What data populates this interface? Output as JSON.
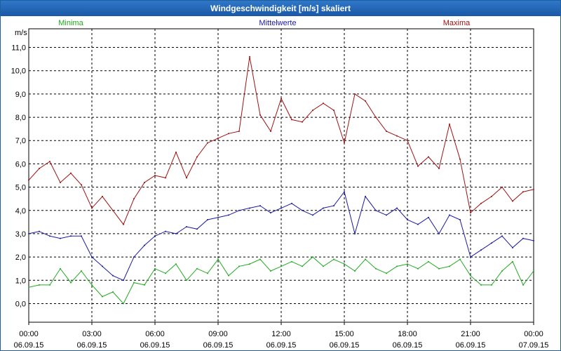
{
  "window": {
    "title": "Windgeschwindigkeit [m/s] skaliert"
  },
  "chart_data": {
    "type": "line",
    "title": "Windgeschwindigkeit [m/s] skaliert",
    "ylabel": "m/s",
    "xlabel": "",
    "ylim": [
      -0.8,
      11.8
    ],
    "xlim": [
      0,
      24
    ],
    "grid": true,
    "yticks": [
      {
        "v": 0,
        "label": "0,0"
      },
      {
        "v": 1,
        "label": "1,0"
      },
      {
        "v": 2,
        "label": "2,0"
      },
      {
        "v": 3,
        "label": "3,0"
      },
      {
        "v": 4,
        "label": "4,0"
      },
      {
        "v": 5,
        "label": "5,0"
      },
      {
        "v": 6,
        "label": "6,0"
      },
      {
        "v": 7,
        "label": "7,0"
      },
      {
        "v": 8,
        "label": "8,0"
      },
      {
        "v": 9,
        "label": "9,0"
      },
      {
        "v": 10,
        "label": "10,0"
      },
      {
        "v": 11,
        "label": "11,0"
      }
    ],
    "xticks": [
      {
        "v": 0,
        "time": "00:00",
        "date": "06.09.15"
      },
      {
        "v": 3,
        "time": "03:00",
        "date": "06.09.15"
      },
      {
        "v": 6,
        "time": "06:00",
        "date": "06.09.15"
      },
      {
        "v": 9,
        "time": "09:00",
        "date": "06.09.15"
      },
      {
        "v": 12,
        "time": "12:00",
        "date": "06.09.15"
      },
      {
        "v": 15,
        "time": "15:00",
        "date": "06.09.15"
      },
      {
        "v": 18,
        "time": "18:00",
        "date": "06.09.15"
      },
      {
        "v": 21,
        "time": "21:00",
        "date": "06.09.15"
      },
      {
        "v": 24,
        "time": "00:00",
        "date": "07.09.15"
      }
    ],
    "legend_position": "top",
    "series": [
      {
        "name": "Minima",
        "color": "#22aa22",
        "x": [
          0,
          0.5,
          1,
          1.5,
          2,
          2.5,
          3,
          3.5,
          4,
          4.5,
          5,
          5.5,
          6,
          6.5,
          7,
          7.5,
          8,
          8.5,
          9,
          9.5,
          10,
          10.5,
          11,
          11.5,
          12,
          12.5,
          13,
          13.5,
          14,
          14.5,
          15,
          15.5,
          16,
          16.5,
          17,
          17.5,
          18,
          18.5,
          19,
          19.5,
          20,
          20.5,
          21,
          21.5,
          22,
          22.5,
          23,
          23.5,
          24
        ],
        "values": [
          0.7,
          0.8,
          0.8,
          1.5,
          0.9,
          1.4,
          0.8,
          0.3,
          0.5,
          0.0,
          0.9,
          0.8,
          1.5,
          1.3,
          1.7,
          1.0,
          1.5,
          1.3,
          1.9,
          1.2,
          1.6,
          1.7,
          1.9,
          1.4,
          1.6,
          1.8,
          1.6,
          2.0,
          1.6,
          1.9,
          1.7,
          1.4,
          1.9,
          1.5,
          1.3,
          1.6,
          1.7,
          1.5,
          1.8,
          1.5,
          1.6,
          1.9,
          1.2,
          0.8,
          0.8,
          1.4,
          1.8,
          0.8,
          1.4
        ]
      },
      {
        "name": "Mittelwerte",
        "color": "#1a1aa0",
        "x": [
          0,
          0.5,
          1,
          1.5,
          2,
          2.5,
          3,
          3.5,
          4,
          4.5,
          5,
          5.5,
          6,
          6.5,
          7,
          7.5,
          8,
          8.5,
          9,
          9.5,
          10,
          10.5,
          11,
          11.5,
          12,
          12.5,
          13,
          13.5,
          14,
          14.5,
          15,
          15.5,
          16,
          16.5,
          17,
          17.5,
          18,
          18.5,
          19,
          19.5,
          20,
          20.5,
          21,
          21.5,
          22,
          22.5,
          23,
          23.5,
          24
        ],
        "values": [
          3.0,
          3.1,
          2.9,
          2.8,
          2.9,
          2.9,
          2.0,
          1.6,
          1.2,
          1.0,
          2.0,
          2.5,
          2.9,
          3.1,
          3.0,
          3.3,
          3.2,
          3.6,
          3.7,
          3.8,
          4.0,
          4.1,
          4.2,
          3.9,
          4.1,
          4.3,
          4.0,
          3.8,
          4.1,
          4.2,
          4.8,
          3.0,
          4.6,
          4.0,
          3.8,
          4.1,
          3.6,
          3.4,
          3.7,
          3.0,
          3.8,
          3.6,
          2.0,
          2.3,
          2.6,
          2.9,
          2.4,
          2.8,
          2.7
        ]
      },
      {
        "name": "Maxima",
        "color": "#a01010",
        "x": [
          0,
          0.5,
          1,
          1.5,
          2,
          2.5,
          3,
          3.5,
          4,
          4.5,
          5,
          5.5,
          6,
          6.5,
          7,
          7.5,
          8,
          8.5,
          9,
          9.5,
          10,
          10.5,
          11,
          11.5,
          12,
          12.5,
          13,
          13.5,
          14,
          14.5,
          15,
          15.5,
          16,
          16.5,
          17,
          17.5,
          18,
          18.5,
          19,
          19.5,
          20,
          20.5,
          21,
          21.5,
          22,
          22.5,
          23,
          23.5,
          24
        ],
        "values": [
          5.3,
          5.8,
          6.1,
          5.2,
          5.6,
          5.1,
          4.1,
          4.6,
          4.0,
          3.4,
          4.5,
          5.2,
          5.5,
          5.4,
          6.5,
          5.4,
          6.3,
          6.9,
          7.1,
          7.3,
          7.4,
          10.6,
          8.1,
          7.4,
          8.8,
          7.9,
          7.8,
          8.3,
          8.6,
          8.3,
          6.9,
          9.0,
          8.7,
          8.0,
          7.4,
          7.2,
          7.0,
          5.9,
          6.3,
          5.8,
          7.7,
          6.2,
          3.9,
          4.3,
          4.6,
          5.0,
          4.4,
          4.8,
          4.9
        ]
      }
    ]
  }
}
